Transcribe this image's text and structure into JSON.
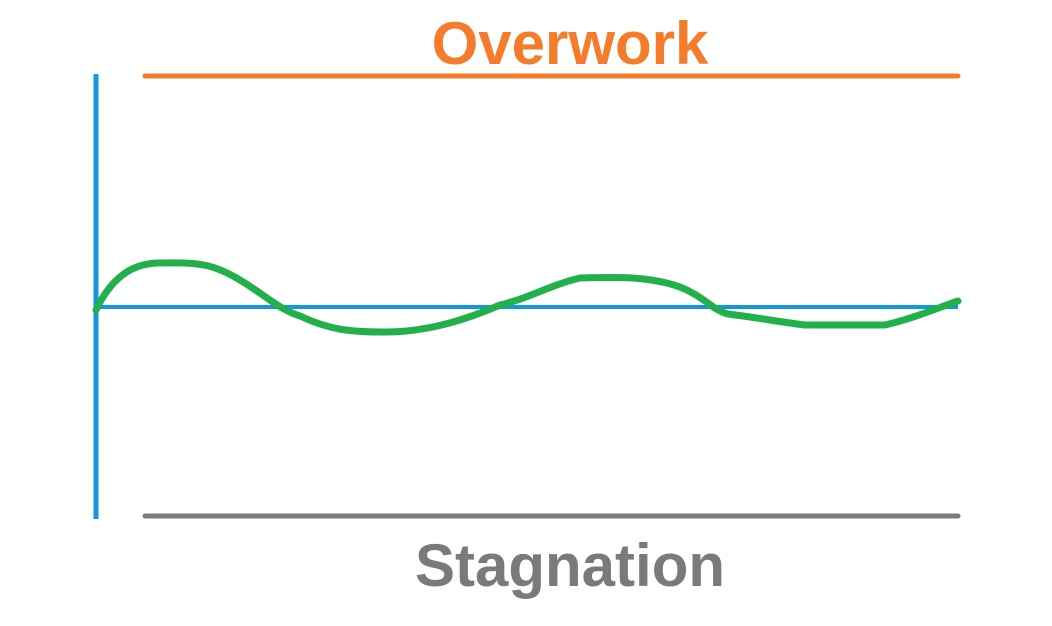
{
  "labels": {
    "top": "Overwork",
    "bottom": "Stagnation"
  },
  "colors": {
    "overwork": "#F47C2A",
    "stagnation": "#7A7A7A",
    "axis": "#1496E0",
    "curve": "#22B04A"
  }
}
